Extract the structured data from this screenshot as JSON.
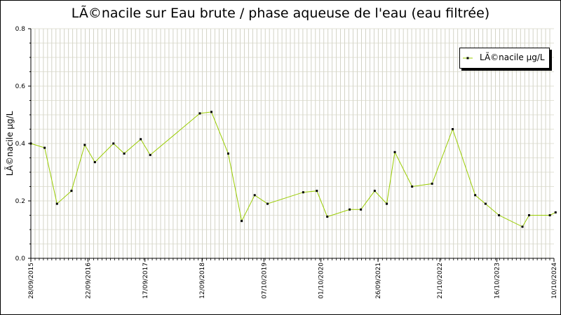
{
  "chart_data": {
    "type": "line",
    "title": "LÃ©nacile sur Eau brute / phase aqueuse de l'eau (eau filtrée)",
    "ylabel": "LÃ©nacile µg/L",
    "xlabel": "",
    "ylim": [
      0,
      0.8
    ],
    "y_ticks": [
      "0.0",
      "0.2",
      "0.4",
      "0.6",
      "0.8"
    ],
    "x_tick_labels": [
      "28/09/2015",
      "22/09/2016",
      "17/09/2017",
      "12/09/2018",
      "07/10/2019",
      "01/10/2020",
      "26/09/2021",
      "21/10/2022",
      "16/10/2023",
      "10/10/2024"
    ],
    "grid": true,
    "legend_position": "top-right",
    "series": [
      {
        "name": "LÃ©nacile µg/L",
        "color": "#99cc00",
        "points": [
          {
            "x": "2015-09-28",
            "y": 0.4
          },
          {
            "x": "2015-12-24",
            "y": 0.385
          },
          {
            "x": "2016-03-11",
            "y": 0.19
          },
          {
            "x": "2016-06-10",
            "y": 0.235
          },
          {
            "x": "2016-09-02",
            "y": 0.395
          },
          {
            "x": "2016-11-05",
            "y": 0.335
          },
          {
            "x": "2017-03-02",
            "y": 0.4
          },
          {
            "x": "2017-05-09",
            "y": 0.365
          },
          {
            "x": "2017-08-21",
            "y": 0.415
          },
          {
            "x": "2017-10-20",
            "y": 0.36
          },
          {
            "x": "2018-08-29",
            "y": 0.505
          },
          {
            "x": "2018-11-10",
            "y": 0.51
          },
          {
            "x": "2019-02-24",
            "y": 0.365
          },
          {
            "x": "2019-05-20",
            "y": 0.13
          },
          {
            "x": "2019-08-10",
            "y": 0.22
          },
          {
            "x": "2019-10-30",
            "y": 0.19
          },
          {
            "x": "2020-06-11",
            "y": 0.23
          },
          {
            "x": "2020-09-05",
            "y": 0.235
          },
          {
            "x": "2020-11-10",
            "y": 0.145
          },
          {
            "x": "2021-03-31",
            "y": 0.17
          },
          {
            "x": "2021-06-10",
            "y": 0.17
          },
          {
            "x": "2021-09-05",
            "y": 0.235
          },
          {
            "x": "2021-11-20",
            "y": 0.19
          },
          {
            "x": "2022-01-10",
            "y": 0.37
          },
          {
            "x": "2022-04-29",
            "y": 0.25
          },
          {
            "x": "2022-09-02",
            "y": 0.26
          },
          {
            "x": "2023-01-10",
            "y": 0.45
          },
          {
            "x": "2023-06-01",
            "y": 0.22
          },
          {
            "x": "2023-08-05",
            "y": 0.19
          },
          {
            "x": "2023-10-29",
            "y": 0.15
          },
          {
            "x": "2024-03-25",
            "y": 0.11
          },
          {
            "x": "2024-05-06",
            "y": 0.15
          },
          {
            "x": "2024-09-14",
            "y": 0.15
          },
          {
            "x": "2024-10-20",
            "y": 0.16
          }
        ]
      }
    ]
  }
}
